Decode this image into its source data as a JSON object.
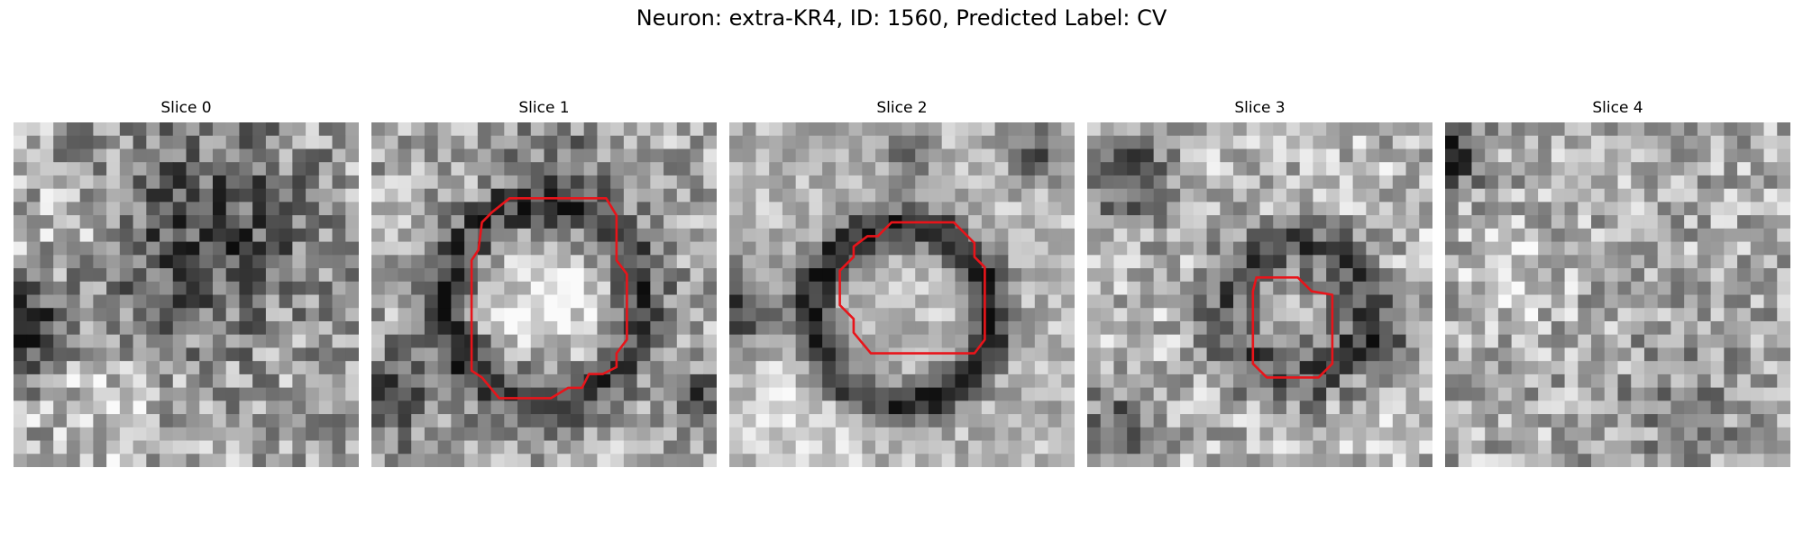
{
  "figure": {
    "title": "Neuron: extra-KR4, ID: 1560, Predicted Label: CV"
  },
  "panels": [
    {
      "label": "Slice 0",
      "image": "grayscale-em-slice",
      "contour": false
    },
    {
      "label": "Slice 1",
      "image": "grayscale-em-slice",
      "contour": true
    },
    {
      "label": "Slice 2",
      "image": "grayscale-em-slice",
      "contour": true
    },
    {
      "label": "Slice 3",
      "image": "grayscale-em-slice",
      "contour": true
    },
    {
      "label": "Slice 4",
      "image": "grayscale-em-slice",
      "contour": false
    }
  ],
  "colors": {
    "contour": "#e8141a",
    "background": "#ffffff"
  }
}
